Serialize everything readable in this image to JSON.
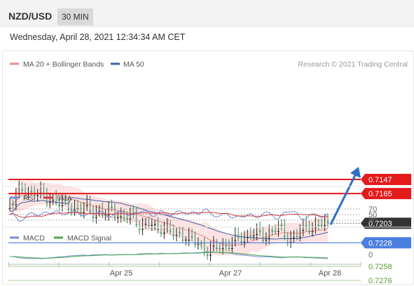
{
  "header": {
    "symbol": "NZD/USD",
    "timeframe": "30 MIN"
  },
  "datetime": "Wednesday, April 28, 2021 12:34:34 AM CET",
  "credit": "Research © 2021 Trading Central",
  "colors": {
    "ma20": "#f08a8a",
    "ma50": "#3f5fa8",
    "band": "#fcd9d9",
    "candle_up": "#2e8b57",
    "candle_down": "#222222",
    "resistance": "#a8d08d",
    "support": "#e41a1c",
    "pivot": "#4a7fe0",
    "current": "#333333",
    "arrow": "#2c6fc7",
    "rsi": "#6f8fd6",
    "rsi_ma": "#d43a3a",
    "macd": "#6f8fd6",
    "macd_signal": "#4aa84a"
  },
  "chart_data": [
    {
      "type": "candlestick",
      "legend": [
        {
          "name": "MA 20 + Bollinger Bands",
          "color": "#f08a8a"
        },
        {
          "name": "MA 50",
          "color": "#3f5fa8"
        }
      ],
      "x_ticks": [
        "Apr 25",
        "Apr 27",
        "Apr 28"
      ],
      "ylim": [
        0.7136,
        0.7286
      ],
      "levels": [
        {
          "value": 0.7276,
          "label": "0.7276",
          "kind": "resistance"
        },
        {
          "value": 0.7258,
          "label": "0.7258",
          "kind": "resistance"
        },
        {
          "value": 0.7228,
          "label": "0.7228",
          "kind": "pivot"
        },
        {
          "value": 0.7203,
          "label": "0.7203",
          "kind": "current"
        },
        {
          "value": 0.7165,
          "label": "0.7165",
          "kind": "support"
        },
        {
          "value": 0.7147,
          "label": "0.7147",
          "kind": "support"
        }
      ],
      "forecast": {
        "from": 0.7203,
        "to": 0.7147,
        "direction": "down"
      },
      "price_path": [
        0.7175,
        0.7167,
        0.716,
        0.7163,
        0.716,
        0.7167,
        0.7172,
        0.717,
        0.7178,
        0.7182,
        0.718,
        0.7185,
        0.7182,
        0.7188,
        0.7186,
        0.7192,
        0.7185,
        0.719,
        0.7197,
        0.7192,
        0.72,
        0.7207,
        0.7203,
        0.721,
        0.7205,
        0.7212,
        0.7218,
        0.7215,
        0.7222,
        0.7226,
        0.7231,
        0.7237,
        0.7235,
        0.7232,
        0.723,
        0.7225,
        0.7222,
        0.722,
        0.7213,
        0.7217,
        0.722,
        0.7212,
        0.7208,
        0.7215,
        0.7222,
        0.7218,
        0.721,
        0.7205,
        0.7206,
        0.7204,
        0.7203
      ]
    },
    {
      "type": "line",
      "name": "RSI",
      "legend": [
        {
          "name": "RSI",
          "color": "#6f8fd6"
        },
        {
          "name": "9MA",
          "color": "#d43a3a"
        }
      ],
      "levels": [
        {
          "value": 70,
          "label": "70"
        },
        {
          "value": 50,
          "label": "50"
        },
        {
          "value": 30,
          "label": "30"
        }
      ],
      "ylim": [
        20,
        80
      ]
    },
    {
      "type": "line",
      "name": "MACD",
      "legend": [
        {
          "name": "MACD",
          "color": "#6f8fd6"
        },
        {
          "name": "MACD Signal",
          "color": "#4aa84a"
        }
      ],
      "levels": [
        {
          "value": 0,
          "label": "0"
        }
      ]
    }
  ]
}
